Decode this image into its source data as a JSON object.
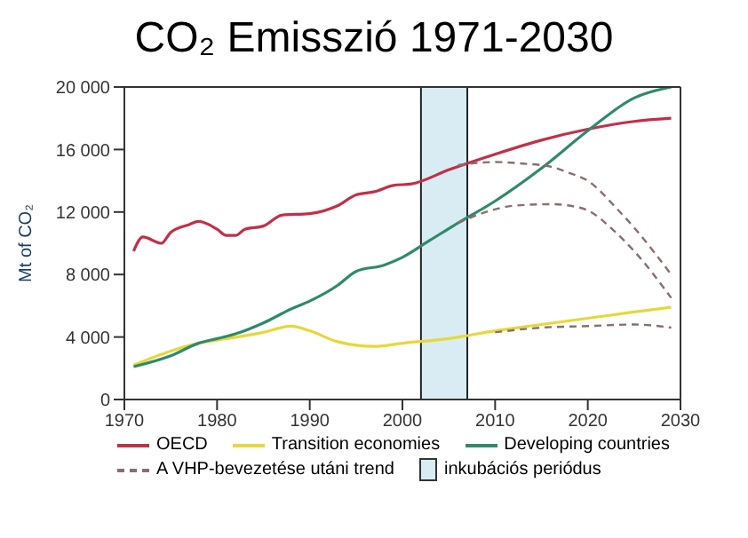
{
  "chart_data": {
    "type": "line",
    "title": "CO₂ Emisszió 1971-2030",
    "ylabel": "Mt of CO₂",
    "xlim": [
      1970,
      2030
    ],
    "xticks": [
      1970,
      1980,
      1990,
      2000,
      2010,
      2020,
      2030
    ],
    "ylim": [
      0,
      20000
    ],
    "yticks": [
      0,
      {
        "value": 4000,
        "label": "4 000"
      },
      {
        "value": 8000,
        "label": "8 000"
      },
      {
        "value": 12000,
        "label": "12 000"
      },
      {
        "value": 16000,
        "label": "16 000"
      },
      {
        "value": 20000,
        "label": "20 000"
      }
    ],
    "legend": "bottom",
    "bands": [
      {
        "axis": "x",
        "from": 2002,
        "to": 2007,
        "label": "inkubációs periódus",
        "color": "#d9ecf3"
      }
    ],
    "series": [
      {
        "name": "OECD",
        "color": "#c0304a",
        "line_style": "solid",
        "x": [
          1971,
          1972,
          1974,
          1975,
          1977,
          1978,
          1980,
          1981,
          1982,
          1983,
          1985,
          1987,
          1990,
          1993,
          1995,
          1997,
          1999,
          2001,
          2005,
          2010,
          2015,
          2020,
          2025,
          2029
        ],
        "values": [
          9500,
          10400,
          10000,
          10700,
          11200,
          11400,
          10900,
          10500,
          10500,
          10900,
          11100,
          11800,
          11900,
          12400,
          13100,
          13300,
          13700,
          13800,
          14700,
          15700,
          16600,
          17300,
          17800,
          18000
        ]
      },
      {
        "name": "Transition economies",
        "color": "#e6d83a",
        "line_style": "solid",
        "x": [
          1971,
          1975,
          1978,
          1980,
          1985,
          1988,
          1990,
          1993,
          1997,
          2000,
          2005,
          2010,
          2015,
          2020,
          2025,
          2029
        ],
        "values": [
          2200,
          3100,
          3600,
          3800,
          4300,
          4700,
          4400,
          3700,
          3400,
          3600,
          3900,
          4400,
          4800,
          5200,
          5600,
          5900
        ]
      },
      {
        "name": "Developing countries",
        "color": "#2f8a6a",
        "line_style": "solid",
        "x": [
          1971,
          1975,
          1978,
          1980,
          1982,
          1985,
          1988,
          1990,
          1993,
          1995,
          1998,
          2000,
          2003,
          2006,
          2010,
          2015,
          2020,
          2025,
          2029
        ],
        "values": [
          2100,
          2800,
          3600,
          3900,
          4200,
          4900,
          5800,
          6300,
          7300,
          8200,
          8600,
          9100,
          10200,
          11300,
          12700,
          14800,
          17200,
          19300,
          20000
        ]
      },
      {
        "name": "A VHP-bevezetése utáni trend",
        "color": "#8a6e6e",
        "line_style": "dashed",
        "x": [
          2006,
          2010,
          2013,
          2016,
          2018,
          2020,
          2023,
          2025,
          2029
        ],
        "values": [
          15000,
          15200,
          15100,
          14900,
          14500,
          14000,
          12300,
          11000,
          8000
        ]
      },
      {
        "color": "#8a6e6e",
        "line_style": "dashed",
        "x": [
          2006,
          2009,
          2012,
          2016,
          2019,
          2020,
          2023,
          2025,
          2029
        ],
        "values": [
          11300,
          12000,
          12400,
          12500,
          12300,
          12100,
          10700,
          9500,
          6500
        ]
      },
      {
        "color": "#8a6e6e",
        "line_style": "dashed",
        "x": [
          2010,
          2015,
          2020,
          2025,
          2029
        ],
        "values": [
          4300,
          4600,
          4700,
          4800,
          4600
        ]
      }
    ]
  }
}
